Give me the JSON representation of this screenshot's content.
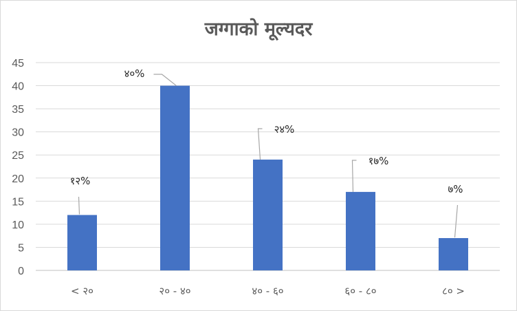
{
  "chart_data": {
    "type": "bar",
    "title": "जग्गाको मूल्यदर",
    "categories": [
      "< २०",
      "२० - ४०",
      "४० - ६०",
      "६० - ८०",
      "८० >"
    ],
    "values": [
      12,
      40,
      24,
      17,
      7
    ],
    "data_labels": [
      "१२%",
      "४०%",
      "२४%",
      "१७%",
      "७%"
    ],
    "y_ticks": [
      "0",
      "5",
      "10",
      "15",
      "20",
      "25",
      "30",
      "35",
      "40",
      "45"
    ],
    "ylim": [
      0,
      45
    ],
    "xlabel": "",
    "ylabel": "",
    "grid": true,
    "legend": "none",
    "colors": {
      "bar": "#4472c4",
      "grid": "#d9d9d9",
      "leader": "#a6a6a6"
    }
  }
}
